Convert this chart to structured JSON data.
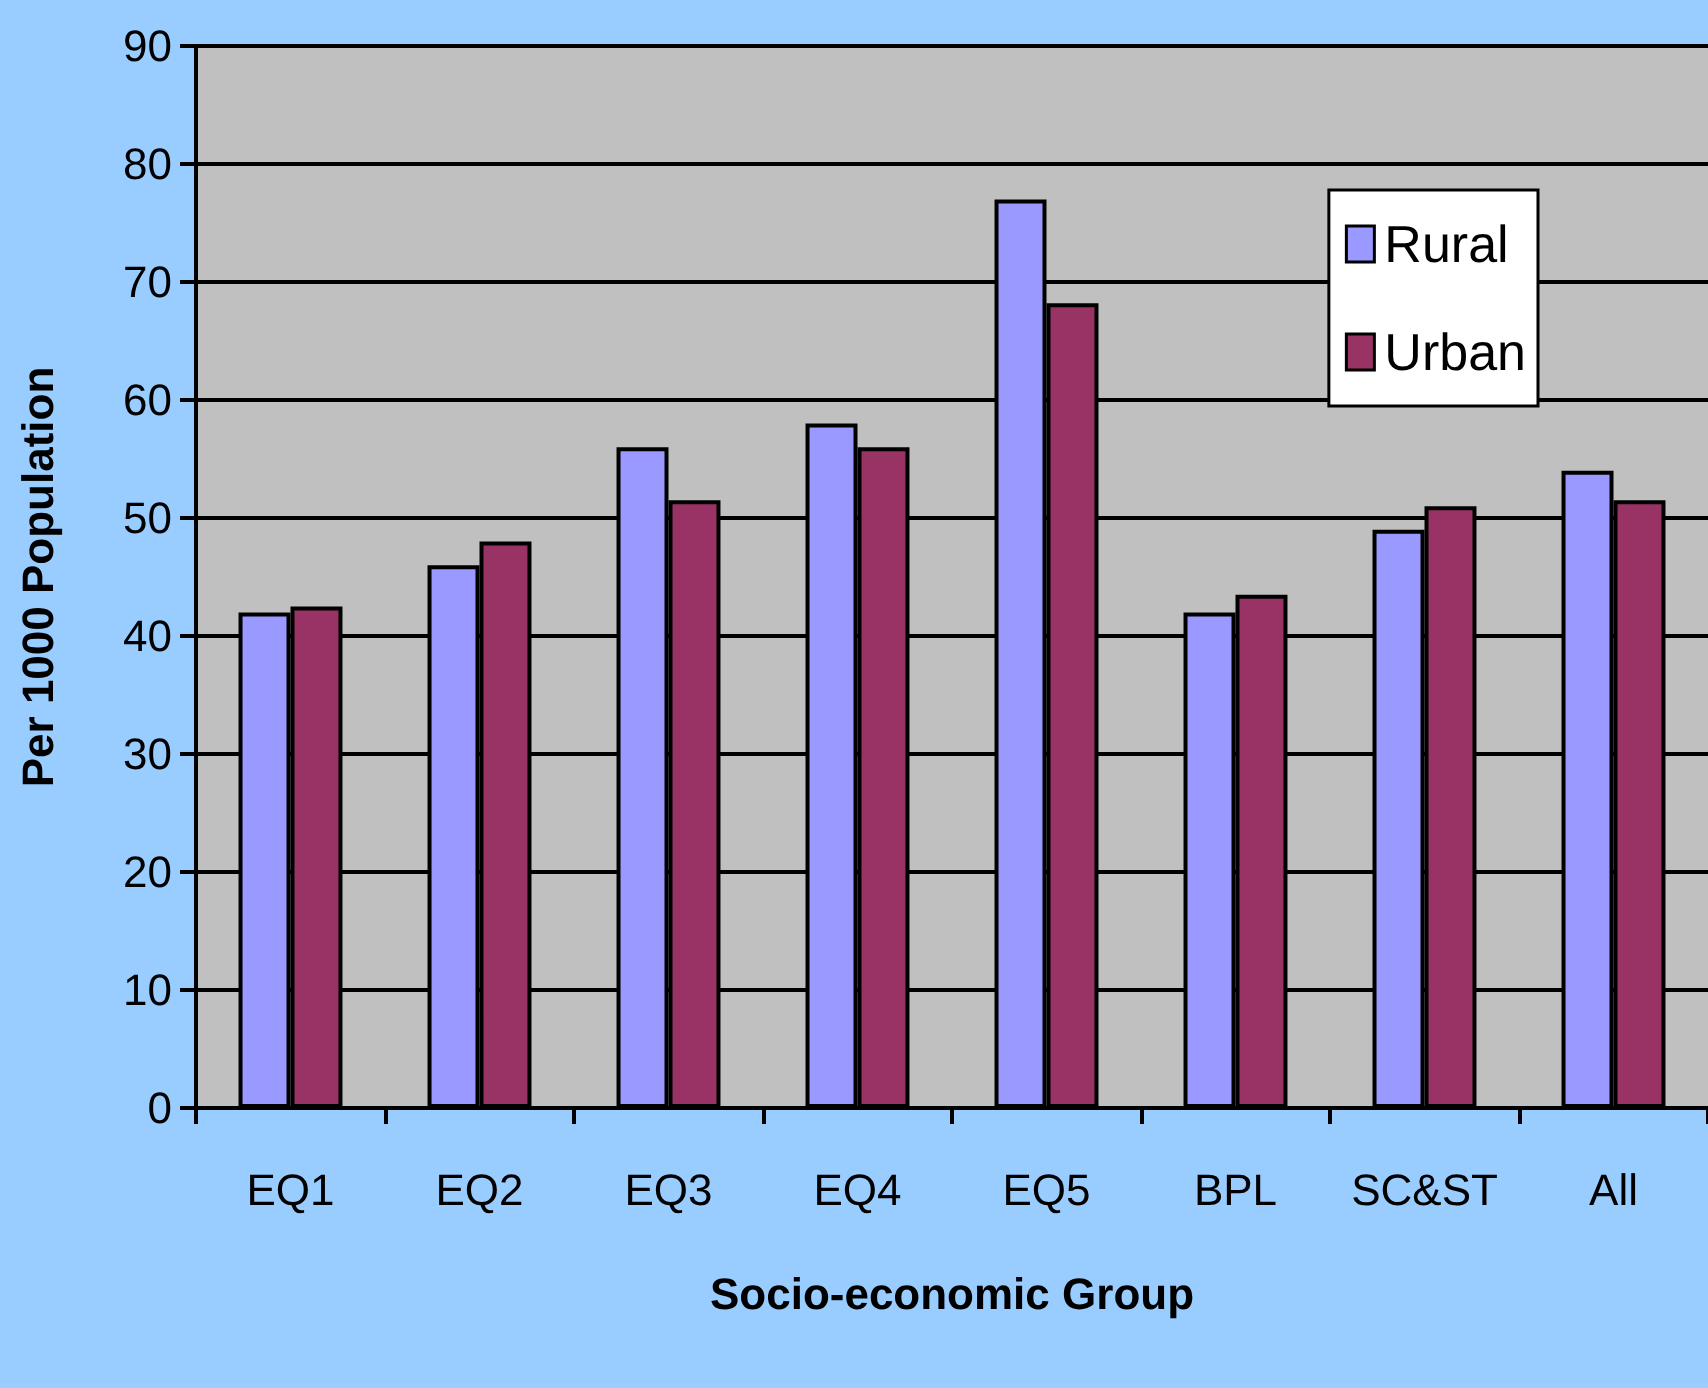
{
  "chart_data": {
    "type": "bar",
    "xlabel": "Socio-economic Group",
    "ylabel": "Per 1000 Population",
    "categories": [
      "EQ1",
      "EQ2",
      "EQ3",
      "EQ4",
      "EQ5",
      "BPL",
      "SC&ST",
      "All"
    ],
    "series": [
      {
        "name": "Rural",
        "color": "#9999ff",
        "values": [
          42,
          46,
          56,
          58,
          77,
          42,
          49,
          54
        ]
      },
      {
        "name": "Urban",
        "color": "#993366",
        "values": [
          42.5,
          48,
          51.5,
          56,
          68.2,
          43.5,
          51,
          51.5
        ]
      }
    ],
    "ylim": [
      0,
      90
    ],
    "yticks": [
      0,
      10,
      20,
      30,
      40,
      50,
      60,
      70,
      80,
      90
    ],
    "grid": "y",
    "legend": "top right"
  }
}
